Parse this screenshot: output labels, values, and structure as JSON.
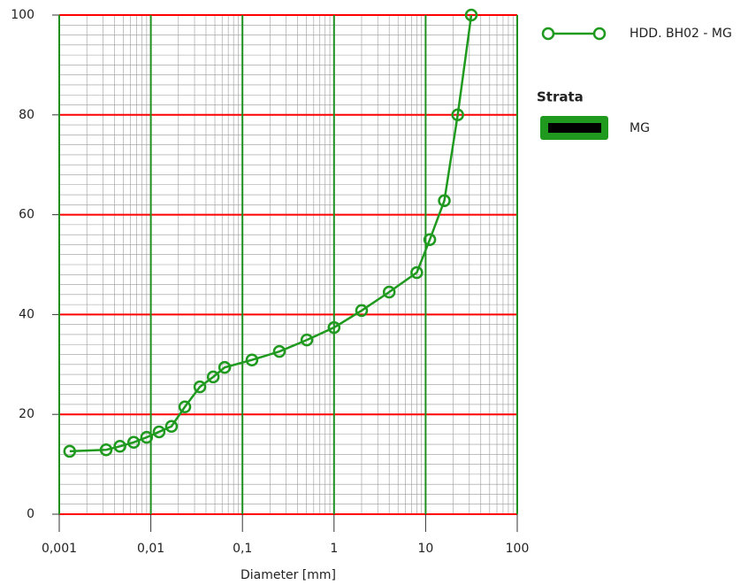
{
  "chart_data": {
    "type": "line",
    "x_scale": "log",
    "x": [
      0.0013,
      0.00325,
      0.0046,
      0.0065,
      0.009,
      0.0123,
      0.0168,
      0.0235,
      0.0343,
      0.048,
      0.064,
      0.127,
      0.253,
      0.505,
      1.0,
      2.0,
      4.0,
      8.0,
      11.1,
      16.0,
      22.4,
      31.5
    ],
    "series": [
      {
        "name": "HDD. BH02 - MG",
        "color": "#1f9a1f",
        "values": [
          12.6,
          12.9,
          13.6,
          14.4,
          15.4,
          16.5,
          17.6,
          21.5,
          25.5,
          27.5,
          29.4,
          30.9,
          32.6,
          34.9,
          37.4,
          40.8,
          44.5,
          48.4,
          55,
          62.8,
          80,
          100
        ]
      }
    ],
    "xlim": [
      0.001,
      100
    ],
    "xticks": [
      {
        "value": 0.001,
        "label": "0,001"
      },
      {
        "value": 0.01,
        "label": "0,01"
      },
      {
        "value": 0.1,
        "label": "0,1"
      },
      1,
      10,
      100
    ],
    "ylim": [
      0,
      100
    ],
    "yticks": [
      0,
      20,
      40,
      60,
      80,
      100
    ],
    "x_label": "Diameter [mm]",
    "x_grid_color": "#1f8f1f",
    "y_grid_color": "#ff0000",
    "minor_grid_color": "#999999",
    "strata_title": "Strata",
    "strata": [
      {
        "name": "MG",
        "color": "#1f9a1f"
      }
    ]
  }
}
